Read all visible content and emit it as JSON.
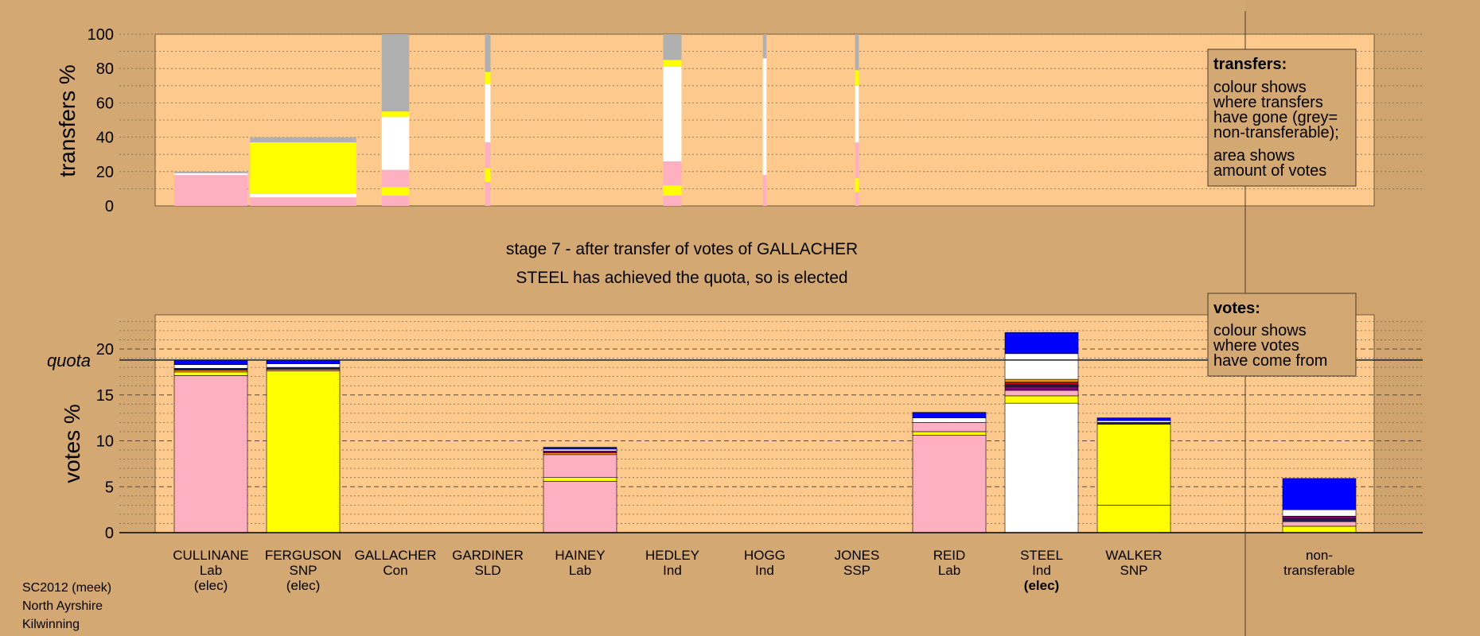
{
  "title": {
    "line1": "stage 7 - after transfer of votes of GALLACHER",
    "line2": "STEEL has achieved the quota, so is elected"
  },
  "colors": {
    "background": "#d4a873",
    "plot_bg": "#fdc98c",
    "Lab": "#ffb0c0",
    "SNP": "#ffff00",
    "Ind": "#ffffff",
    "Con": "#0000ff",
    "nontransferable": "#b0b0b0",
    "SSP": "#cc0000",
    "SLD": "#ff9900",
    "Ind2": "#800080",
    "Ind3": "#202060"
  },
  "legend_transfers": {
    "heading": "transfers:",
    "lines1": [
      "colour shows",
      "where transfers",
      "have gone (grey=",
      "non-transferable);"
    ],
    "lines2": [
      "area shows",
      "amount of votes"
    ]
  },
  "legend_votes": {
    "heading": "votes:",
    "lines": [
      "colour shows",
      "where votes",
      "have come from"
    ]
  },
  "footer": [
    "SC2012 (meek)",
    "North Ayrshire",
    "Kilwinning"
  ],
  "candidates": [
    {
      "name": "CULLINANE",
      "party": "Lab",
      "status": "(elec)",
      "status_bold": false
    },
    {
      "name": "FERGUSON",
      "party": "SNP",
      "status": "(elec)",
      "status_bold": false
    },
    {
      "name": "GALLACHER",
      "party": "Con",
      "status": "",
      "status_bold": false
    },
    {
      "name": "GARDINER",
      "party": "SLD",
      "status": "",
      "status_bold": false
    },
    {
      "name": "HAINEY",
      "party": "Lab",
      "status": "",
      "status_bold": false
    },
    {
      "name": "HEDLEY",
      "party": "Ind",
      "status": "",
      "status_bold": false
    },
    {
      "name": "HOGG",
      "party": "Ind",
      "status": "",
      "status_bold": false
    },
    {
      "name": "JONES",
      "party": "SSP",
      "status": "",
      "status_bold": false
    },
    {
      "name": "REID",
      "party": "Lab",
      "status": "",
      "status_bold": false
    },
    {
      "name": "STEEL",
      "party": "Ind",
      "status": "(elec)",
      "status_bold": true
    },
    {
      "name": "WALKER",
      "party": "SNP",
      "status": "",
      "status_bold": false
    },
    {
      "name": "non-",
      "party": "transferable",
      "status": "",
      "status_bold": false
    }
  ],
  "chart_data": [
    {
      "type": "bar",
      "name": "transfers",
      "ylabel": "transfers %",
      "ylim": [
        0,
        100
      ],
      "yticks": [
        0,
        20,
        40,
        60,
        80,
        100
      ],
      "grid": "dotted every 10",
      "note": "stacked transfer bars; width reflects amount of votes transferred",
      "bars": [
        {
          "candidate": "CULLINANE",
          "width_rel": 4,
          "segments": [
            {
              "color": "Lab",
              "value": 18
            },
            {
              "color": "Ind",
              "value": 1
            },
            {
              "color": "nontransferable",
              "value": 1
            }
          ]
        },
        {
          "candidate": "FERGUSON",
          "width_rel": 5.8,
          "segments": [
            {
              "color": "Lab",
              "value": 5
            },
            {
              "color": "Ind",
              "value": 2
            },
            {
              "color": "SNP",
              "value": 30
            },
            {
              "color": "nontransferable",
              "value": 3
            }
          ]
        },
        {
          "candidate": "GALLACHER",
          "width_rel": 1.5,
          "segments": [
            {
              "color": "Lab",
              "value": 6
            },
            {
              "color": "SNP",
              "value": 5
            },
            {
              "color": "Lab",
              "value": 10
            },
            {
              "color": "Ind",
              "value": 31
            },
            {
              "color": "SNP",
              "value": 3
            },
            {
              "color": "nontransferable",
              "value": 45
            }
          ]
        },
        {
          "candidate": "GARDINER",
          "width_rel": 0.3,
          "segments": [
            {
              "color": "Lab",
              "value": 14
            },
            {
              "color": "SNP",
              "value": 8
            },
            {
              "color": "Lab",
              "value": 15
            },
            {
              "color": "Ind",
              "value": 34
            },
            {
              "color": "SNP",
              "value": 7
            },
            {
              "color": "nontransferable",
              "value": 22
            }
          ]
        },
        {
          "candidate": "HEDLEY",
          "width_rel": 1,
          "segments": [
            {
              "color": "Lab",
              "value": 6
            },
            {
              "color": "SNP",
              "value": 6
            },
            {
              "color": "Lab",
              "value": 14
            },
            {
              "color": "Ind",
              "value": 55
            },
            {
              "color": "SNP",
              "value": 4
            },
            {
              "color": "nontransferable",
              "value": 15
            }
          ]
        },
        {
          "candidate": "HOGG",
          "width_rel": 0.2,
          "segments": [
            {
              "color": "Lab",
              "value": 18
            },
            {
              "color": "Ind",
              "value": 68
            },
            {
              "color": "nontransferable",
              "value": 14
            }
          ]
        },
        {
          "candidate": "JONES",
          "width_rel": 0.2,
          "segments": [
            {
              "color": "Lab",
              "value": 8
            },
            {
              "color": "SNP",
              "value": 8
            },
            {
              "color": "Lab",
              "value": 21
            },
            {
              "color": "Ind",
              "value": 33
            },
            {
              "color": "SNP",
              "value": 9
            },
            {
              "color": "nontransferable",
              "value": 21
            }
          ]
        }
      ]
    },
    {
      "type": "bar",
      "name": "votes",
      "ylabel": "votes %",
      "ylim": [
        0,
        24
      ],
      "yticks": [
        0,
        5,
        10,
        15,
        20
      ],
      "quota": 18.8,
      "quota_label": "quota",
      "grid": "dashed every 5, dotted every 1",
      "bars": [
        {
          "candidate": "CULLINANE",
          "segments": [
            {
              "color": "Lab",
              "value": 17.1
            },
            {
              "color": "SNP",
              "value": 0.4
            },
            {
              "color": "SLD",
              "value": 0.2
            },
            {
              "color": "Ind3",
              "value": 0.2
            },
            {
              "color": "Ind",
              "value": 0.4
            },
            {
              "color": "Con",
              "value": 0.5
            }
          ]
        },
        {
          "candidate": "FERGUSON",
          "segments": [
            {
              "color": "SNP",
              "value": 17.6
            },
            {
              "color": "SLD",
              "value": 0.2
            },
            {
              "color": "Ind3",
              "value": 0.2
            },
            {
              "color": "Ind",
              "value": 0.4
            },
            {
              "color": "Con",
              "value": 0.4
            }
          ]
        },
        {
          "candidate": "GALLACHER",
          "segments": []
        },
        {
          "candidate": "GARDINER",
          "segments": []
        },
        {
          "candidate": "HAINEY",
          "segments": [
            {
              "color": "Lab",
              "value": 5.6
            },
            {
              "color": "SNP",
              "value": 0.4
            },
            {
              "color": "Lab",
              "value": 2.5
            },
            {
              "color": "SLD",
              "value": 0.2
            },
            {
              "color": "Ind2",
              "value": 0.2
            },
            {
              "color": "Ind",
              "value": 0.2
            },
            {
              "color": "Con",
              "value": 0.2
            }
          ]
        },
        {
          "candidate": "HEDLEY",
          "segments": []
        },
        {
          "candidate": "HOGG",
          "segments": []
        },
        {
          "candidate": "JONES",
          "segments": []
        },
        {
          "candidate": "REID",
          "segments": [
            {
              "color": "Lab",
              "value": 10.6
            },
            {
              "color": "SNP",
              "value": 0.4
            },
            {
              "color": "Lab",
              "value": 1.0
            },
            {
              "color": "Ind",
              "value": 0.5
            },
            {
              "color": "Con",
              "value": 0.6
            }
          ]
        },
        {
          "candidate": "STEEL",
          "segments": [
            {
              "color": "Ind",
              "value": 14.1
            },
            {
              "color": "SNP",
              "value": 0.8
            },
            {
              "color": "Lab",
              "value": 0.6
            },
            {
              "color": "Ind2",
              "value": 0.4
            },
            {
              "color": "Ind3",
              "value": 0.2
            },
            {
              "color": "SSP",
              "value": 0.3
            },
            {
              "color": "SLD",
              "value": 0.3
            },
            {
              "color": "Ind",
              "value": 2.8
            },
            {
              "color": "Con",
              "value": 2.3
            }
          ]
        },
        {
          "candidate": "WALKER",
          "segments": [
            {
              "color": "SNP",
              "value": 3.0
            },
            {
              "color": "SNP",
              "value": 8.8
            },
            {
              "color": "Ind3",
              "value": 0.2
            },
            {
              "color": "Ind",
              "value": 0.2
            },
            {
              "color": "Con",
              "value": 0.3
            }
          ]
        },
        {
          "candidate": "non-transferable",
          "segments": [
            {
              "color": "SNP",
              "value": 0.7
            },
            {
              "color": "Lab",
              "value": 0.5
            },
            {
              "color": "Ind3",
              "value": 0.3
            },
            {
              "color": "Ind2",
              "value": 0.3
            },
            {
              "color": "Ind",
              "value": 0.7
            },
            {
              "color": "Con",
              "value": 3.4
            }
          ]
        }
      ]
    }
  ]
}
